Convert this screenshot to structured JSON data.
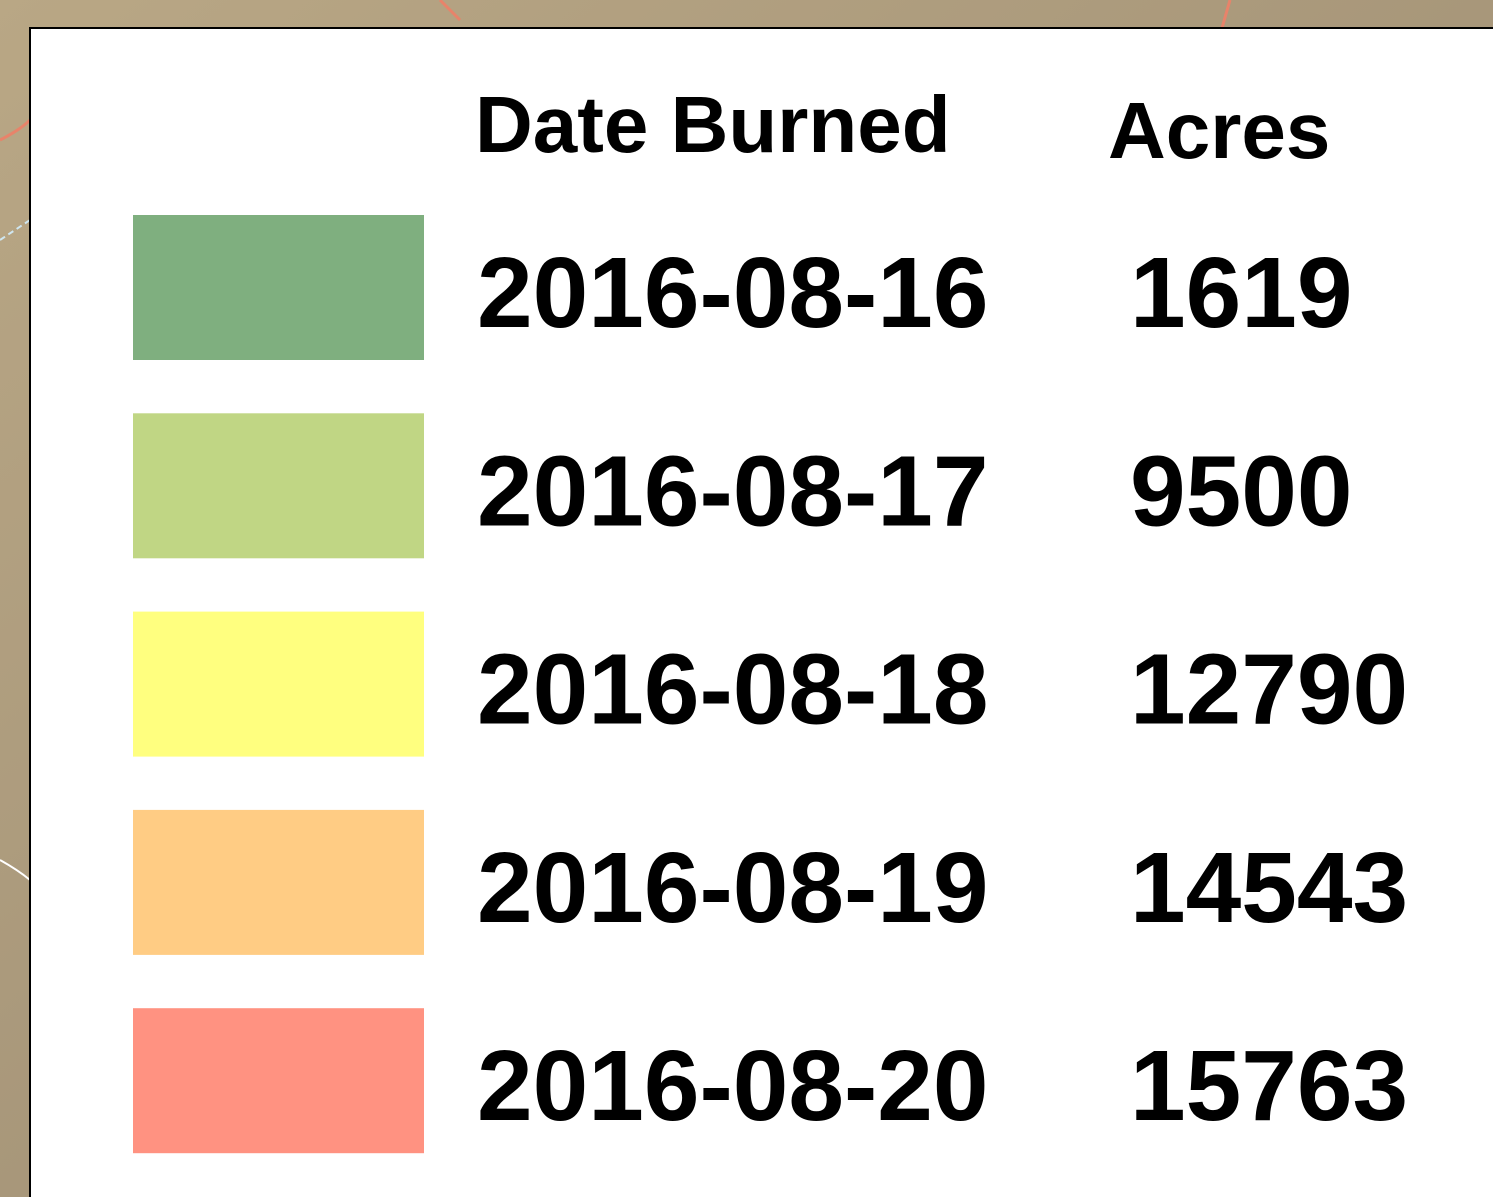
{
  "legend": {
    "headers": {
      "date": "Date Burned",
      "acres": "Acres"
    },
    "rows": [
      {
        "color": "#7faf7f",
        "date": "2016-08-16",
        "acres": 1619
      },
      {
        "color": "#c0d684",
        "date": "2016-08-17",
        "acres": 9500
      },
      {
        "color": "#ffff7f",
        "date": "2016-08-18",
        "acres": 12790
      },
      {
        "color": "#ffcc84",
        "date": "2016-08-19",
        "acres": 14543
      },
      {
        "color": "#ff9281",
        "date": "2016-08-20",
        "acres": 15763
      }
    ]
  }
}
